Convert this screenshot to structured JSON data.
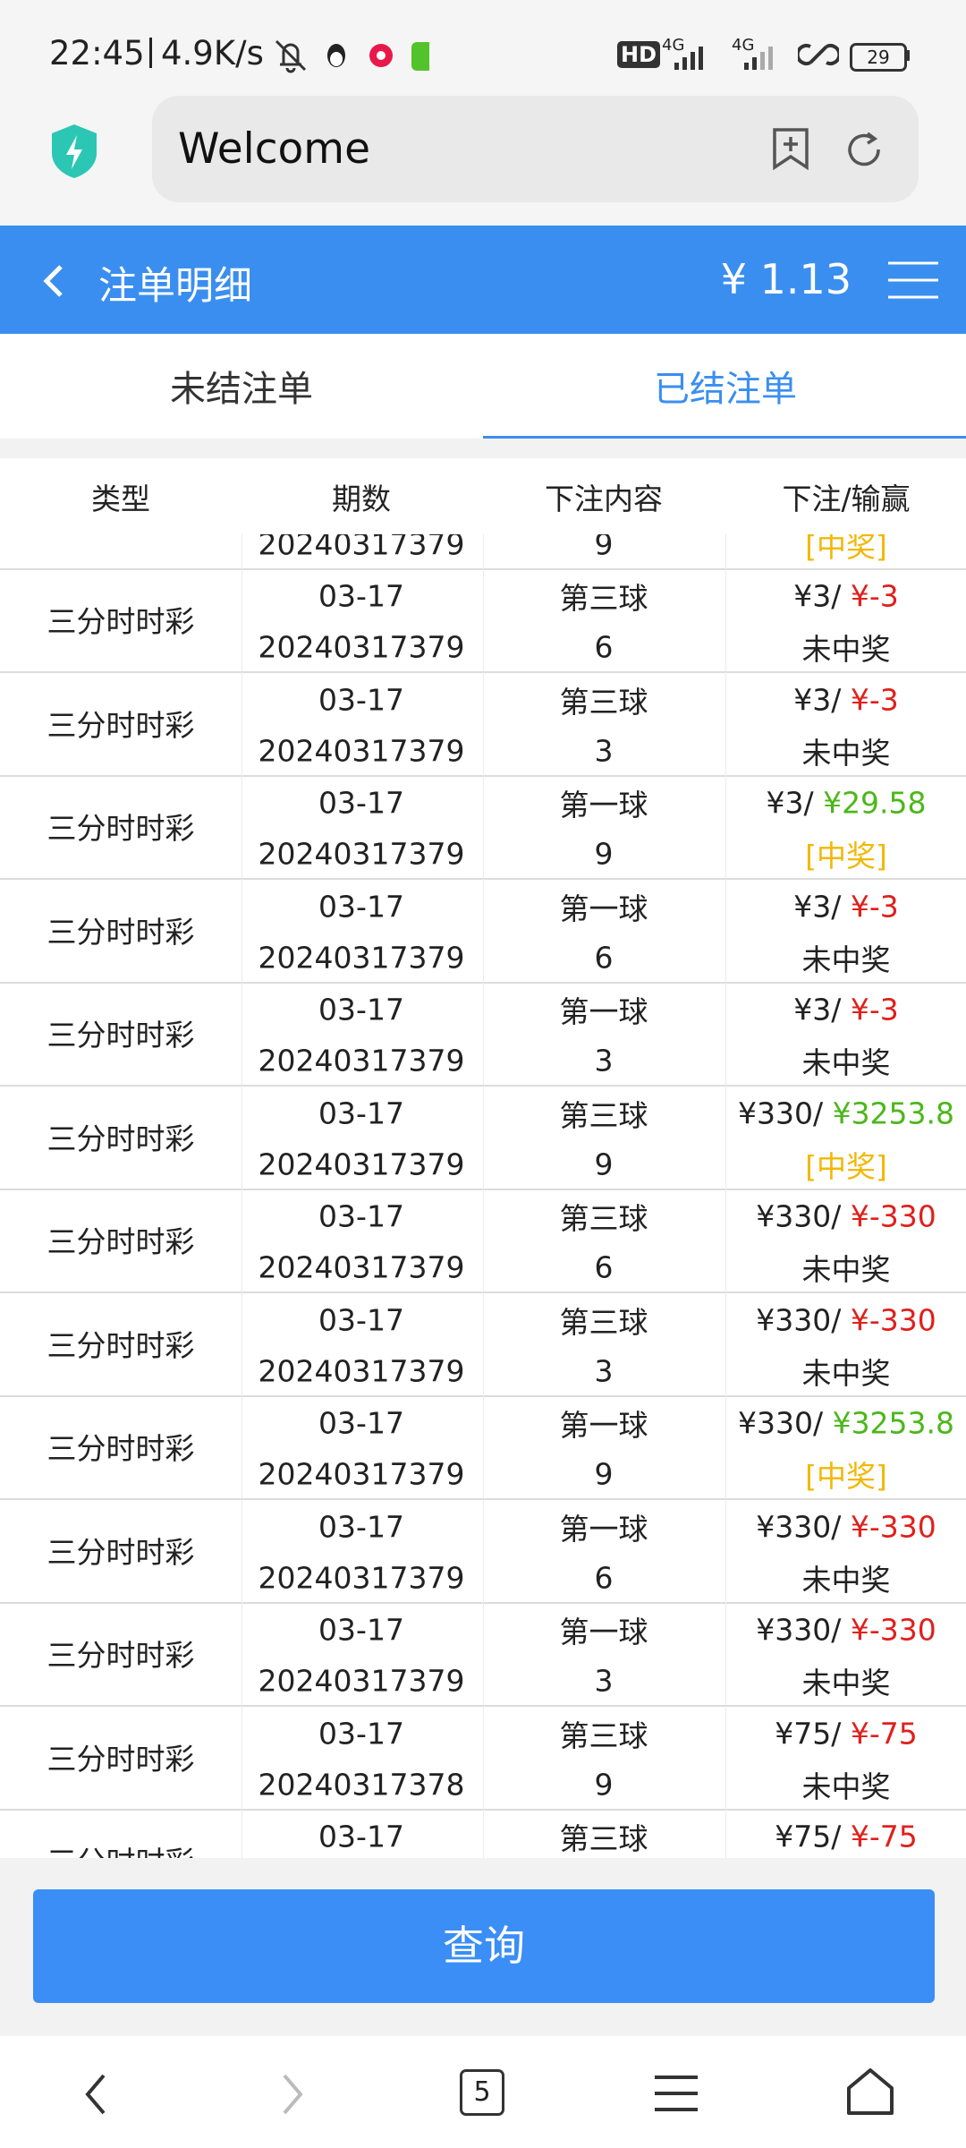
{
  "status_bar": {
    "time": "22:45",
    "speed": "4.9K/s",
    "hd": "HD",
    "network": [
      "4G",
      "4G"
    ],
    "battery": "29"
  },
  "browser": {
    "url": "Welcome",
    "tab_count": "5"
  },
  "header": {
    "title": "注单明细",
    "balance": "¥ 1.13"
  },
  "tabs": {
    "items": [
      "未结注单",
      "已结注单"
    ],
    "active": 1
  },
  "table": {
    "columns": [
      "类型",
      "期数",
      "下注内容",
      "下注/输赢"
    ],
    "partial_top_row": {
      "period": "20240317379",
      "number": "9",
      "result": "[中奖]",
      "result_color": "#f2b807"
    },
    "rows": [
      {
        "type": "三分时时彩",
        "date": "03-17",
        "period": "20240317379",
        "ball": "第三球",
        "number": "6",
        "stake": "¥3/",
        "amount": "¥-3",
        "amount_color": "#e0201c",
        "result": "未中奖",
        "result_color": "#222222"
      },
      {
        "type": "三分时时彩",
        "date": "03-17",
        "period": "20240317379",
        "ball": "第三球",
        "number": "3",
        "stake": "¥3/",
        "amount": "¥-3",
        "amount_color": "#e0201c",
        "result": "未中奖",
        "result_color": "#222222"
      },
      {
        "type": "三分时时彩",
        "date": "03-17",
        "period": "20240317379",
        "ball": "第一球",
        "number": "9",
        "stake": "¥3/",
        "amount": "¥29.58",
        "amount_color": "#4cb71a",
        "result": "[中奖]",
        "result_color": "#f2b807"
      },
      {
        "type": "三分时时彩",
        "date": "03-17",
        "period": "20240317379",
        "ball": "第一球",
        "number": "6",
        "stake": "¥3/",
        "amount": "¥-3",
        "amount_color": "#e0201c",
        "result": "未中奖",
        "result_color": "#222222"
      },
      {
        "type": "三分时时彩",
        "date": "03-17",
        "period": "20240317379",
        "ball": "第一球",
        "number": "3",
        "stake": "¥3/",
        "amount": "¥-3",
        "amount_color": "#e0201c",
        "result": "未中奖",
        "result_color": "#222222"
      },
      {
        "type": "三分时时彩",
        "date": "03-17",
        "period": "20240317379",
        "ball": "第三球",
        "number": "9",
        "stake": "¥330/",
        "amount": "¥3253.8",
        "amount_color": "#4cb71a",
        "result": "[中奖]",
        "result_color": "#f2b807"
      },
      {
        "type": "三分时时彩",
        "date": "03-17",
        "period": "20240317379",
        "ball": "第三球",
        "number": "6",
        "stake": "¥330/",
        "amount": "¥-330",
        "amount_color": "#e0201c",
        "result": "未中奖",
        "result_color": "#222222"
      },
      {
        "type": "三分时时彩",
        "date": "03-17",
        "period": "20240317379",
        "ball": "第三球",
        "number": "3",
        "stake": "¥330/",
        "amount": "¥-330",
        "amount_color": "#e0201c",
        "result": "未中奖",
        "result_color": "#222222"
      },
      {
        "type": "三分时时彩",
        "date": "03-17",
        "period": "20240317379",
        "ball": "第一球",
        "number": "9",
        "stake": "¥330/",
        "amount": "¥3253.8",
        "amount_color": "#4cb71a",
        "result": "[中奖]",
        "result_color": "#f2b807"
      },
      {
        "type": "三分时时彩",
        "date": "03-17",
        "period": "20240317379",
        "ball": "第一球",
        "number": "6",
        "stake": "¥330/",
        "amount": "¥-330",
        "amount_color": "#e0201c",
        "result": "未中奖",
        "result_color": "#222222"
      },
      {
        "type": "三分时时彩",
        "date": "03-17",
        "period": "20240317379",
        "ball": "第一球",
        "number": "3",
        "stake": "¥330/",
        "amount": "¥-330",
        "amount_color": "#e0201c",
        "result": "未中奖",
        "result_color": "#222222"
      },
      {
        "type": "三分时时彩",
        "date": "03-17",
        "period": "20240317378",
        "ball": "第三球",
        "number": "9",
        "stake": "¥75/",
        "amount": "¥-75",
        "amount_color": "#e0201c",
        "result": "未中奖",
        "result_color": "#222222"
      },
      {
        "type": "三分时时彩",
        "date": "03-17",
        "ball": "第三球",
        "stake": "¥75/",
        "amount": "¥-75",
        "amount_color": "#e0201c"
      }
    ]
  },
  "query_button": "查询"
}
